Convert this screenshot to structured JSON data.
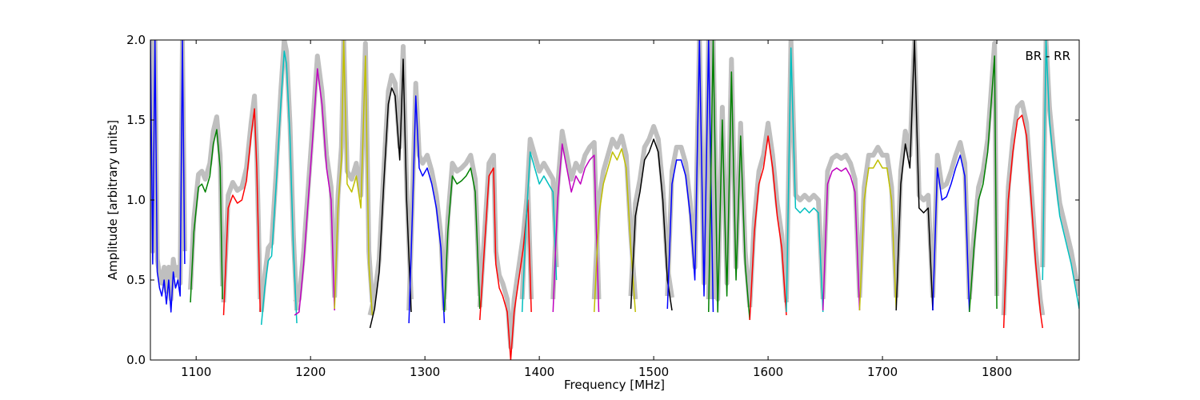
{
  "chart_data": {
    "type": "line",
    "title": "",
    "annotation": "BR - RR",
    "xlabel": "Frequency [MHz]",
    "ylabel": "Amplitude [arbitrary units]",
    "xlim": [
      1060,
      1872
    ],
    "ylim": [
      0.0,
      2.0
    ],
    "xticks": [
      1100,
      1200,
      1300,
      1400,
      1500,
      1600,
      1700,
      1800
    ],
    "yticks": [
      0.0,
      0.5,
      1.0,
      1.5,
      2.0
    ],
    "xtick_labels": [
      "1100",
      "1200",
      "1300",
      "1400",
      "1500",
      "1600",
      "1700",
      "1800"
    ],
    "ytick_labels": [
      "0.0",
      "0.5",
      "1.0",
      "1.5",
      "2.0"
    ],
    "grid": false,
    "legend": "none",
    "background_color": "#bfbfbf",
    "series": [
      {
        "color": "#0000ff",
        "x": [
          1060,
          1062,
          1064,
          1066,
          1068,
          1070,
          1072,
          1074,
          1076,
          1078,
          1080,
          1082,
          1084,
          1086,
          1088,
          1090
        ],
        "y": [
          2.0,
          0.6,
          2.0,
          0.55,
          0.45,
          0.4,
          0.5,
          0.35,
          0.5,
          0.3,
          0.55,
          0.45,
          0.5,
          0.4,
          2.0,
          0.6
        ]
      },
      {
        "color": "#008000",
        "x": [
          1095,
          1098,
          1102,
          1105,
          1108,
          1112,
          1115,
          1118,
          1121,
          1123
        ],
        "y": [
          0.36,
          0.8,
          1.08,
          1.1,
          1.05,
          1.15,
          1.35,
          1.44,
          1.2,
          0.38
        ]
      },
      {
        "color": "#ff0000",
        "x": [
          1124,
          1128,
          1132,
          1136,
          1140,
          1144,
          1148,
          1151,
          1153,
          1156
        ],
        "y": [
          0.28,
          0.95,
          1.03,
          0.98,
          1.0,
          1.12,
          1.4,
          1.57,
          1.2,
          0.3
        ]
      },
      {
        "color": "#00bfbf",
        "x": [
          1157,
          1160,
          1163,
          1166,
          1170,
          1174,
          1177,
          1179,
          1182,
          1185,
          1188
        ],
        "y": [
          0.22,
          0.45,
          0.62,
          0.65,
          1.1,
          1.6,
          1.93,
          1.85,
          1.4,
          0.7,
          0.23
        ]
      },
      {
        "color": "#bf00bf",
        "x": [
          1186,
          1190,
          1194,
          1198,
          1202,
          1206,
          1210,
          1214,
          1218,
          1221
        ],
        "y": [
          0.28,
          0.3,
          0.6,
          1.0,
          1.4,
          1.82,
          1.6,
          1.2,
          1.0,
          0.31
        ]
      },
      {
        "color": "#bfbf00",
        "x": [
          1221,
          1224,
          1227,
          1229,
          1232,
          1236,
          1240,
          1244,
          1248,
          1251,
          1254
        ],
        "y": [
          0.32,
          0.95,
          1.25,
          2.0,
          1.1,
          1.05,
          1.15,
          0.95,
          1.9,
          0.6,
          0.28
        ]
      },
      {
        "color": "#000000",
        "x": [
          1252,
          1256,
          1260,
          1264,
          1268,
          1271,
          1274,
          1278,
          1281,
          1284,
          1288
        ],
        "y": [
          0.2,
          0.32,
          0.55,
          1.1,
          1.6,
          1.7,
          1.65,
          1.25,
          1.88,
          1.0,
          0.3
        ]
      },
      {
        "color": "#0000ff",
        "x": [
          1286,
          1289,
          1292,
          1295,
          1298,
          1302,
          1306,
          1310,
          1314,
          1317
        ],
        "y": [
          0.23,
          0.9,
          1.65,
          1.2,
          1.15,
          1.2,
          1.1,
          0.95,
          0.7,
          0.23
        ]
      },
      {
        "color": "#008000",
        "x": [
          1317,
          1320,
          1324,
          1328,
          1332,
          1336,
          1340,
          1344,
          1348
        ],
        "y": [
          0.3,
          0.8,
          1.15,
          1.1,
          1.12,
          1.15,
          1.2,
          1.05,
          0.32
        ]
      },
      {
        "color": "#ff0000",
        "x": [
          1348,
          1352,
          1356,
          1360,
          1362,
          1365,
          1368,
          1372,
          1375,
          1378,
          1382,
          1386,
          1390,
          1393
        ],
        "y": [
          0.25,
          0.7,
          1.15,
          1.2,
          0.6,
          0.45,
          0.4,
          0.3,
          0.0,
          0.3,
          0.5,
          0.7,
          1.0,
          0.3
        ]
      },
      {
        "color": "#00bfbf",
        "x": [
          1385,
          1388,
          1392,
          1396,
          1400,
          1404,
          1408,
          1412,
          1415
        ],
        "y": [
          0.3,
          0.8,
          1.3,
          1.2,
          1.1,
          1.15,
          1.1,
          1.05,
          0.5
        ]
      },
      {
        "color": "#bf00bf",
        "x": [
          1412,
          1416,
          1420,
          1424,
          1428,
          1432,
          1436,
          1440,
          1444,
          1448,
          1452
        ],
        "y": [
          0.3,
          1.0,
          1.35,
          1.2,
          1.05,
          1.15,
          1.1,
          1.2,
          1.25,
          1.28,
          0.3
        ]
      },
      {
        "color": "#bfbf00",
        "x": [
          1448,
          1452,
          1456,
          1460,
          1464,
          1468,
          1472,
          1476,
          1480,
          1484
        ],
        "y": [
          0.3,
          0.9,
          1.1,
          1.2,
          1.3,
          1.25,
          1.32,
          1.2,
          0.7,
          0.3
        ]
      },
      {
        "color": "#000000",
        "x": [
          1480,
          1484,
          1488,
          1492,
          1496,
          1500,
          1504,
          1508,
          1512,
          1516
        ],
        "y": [
          0.32,
          0.9,
          1.05,
          1.25,
          1.3,
          1.38,
          1.3,
          1.0,
          0.5,
          0.31
        ]
      },
      {
        "color": "#0000ff",
        "x": [
          1512,
          1516,
          1520,
          1524,
          1528,
          1532,
          1536,
          1540,
          1544,
          1548,
          1552
        ],
        "y": [
          0.32,
          1.1,
          1.25,
          1.25,
          1.15,
          0.9,
          0.5,
          2.0,
          0.4,
          2.0,
          0.3
        ]
      },
      {
        "color": "#008000",
        "x": [
          1548,
          1552,
          1556,
          1560,
          1564,
          1568,
          1572,
          1576,
          1580,
          1584
        ],
        "y": [
          0.3,
          2.0,
          0.3,
          1.5,
          0.4,
          1.8,
          0.5,
          1.4,
          0.6,
          0.25
        ]
      },
      {
        "color": "#ff0000",
        "x": [
          1584,
          1588,
          1592,
          1596,
          1600,
          1604,
          1608,
          1612,
          1616
        ],
        "y": [
          0.25,
          0.8,
          1.1,
          1.2,
          1.4,
          1.2,
          0.9,
          0.7,
          0.28
        ]
      },
      {
        "color": "#00bfbf",
        "x": [
          1616,
          1620,
          1624,
          1628,
          1632,
          1636,
          1640,
          1644,
          1648
        ],
        "y": [
          0.3,
          1.95,
          0.95,
          0.92,
          0.95,
          0.92,
          0.95,
          0.92,
          0.3
        ]
      },
      {
        "color": "#bf00bf",
        "x": [
          1648,
          1652,
          1656,
          1660,
          1664,
          1668,
          1672,
          1676,
          1680
        ],
        "y": [
          0.31,
          1.1,
          1.18,
          1.2,
          1.18,
          1.2,
          1.15,
          1.05,
          0.31
        ]
      },
      {
        "color": "#bfbf00",
        "x": [
          1680,
          1684,
          1688,
          1692,
          1696,
          1700,
          1704,
          1708,
          1712
        ],
        "y": [
          0.31,
          1.0,
          1.2,
          1.2,
          1.25,
          1.2,
          1.2,
          1.0,
          0.32
        ]
      },
      {
        "color": "#000000",
        "x": [
          1712,
          1716,
          1720,
          1724,
          1728,
          1732,
          1736,
          1740,
          1744
        ],
        "y": [
          0.31,
          1.1,
          1.35,
          1.2,
          2.0,
          0.95,
          0.92,
          0.95,
          0.31
        ]
      },
      {
        "color": "#0000ff",
        "x": [
          1744,
          1748,
          1752,
          1756,
          1760,
          1764,
          1768,
          1772,
          1776
        ],
        "y": [
          0.31,
          1.2,
          1.0,
          1.02,
          1.1,
          1.2,
          1.28,
          1.15,
          0.3
        ]
      },
      {
        "color": "#008000",
        "x": [
          1776,
          1780,
          1784,
          1788,
          1792,
          1795,
          1798,
          1800
        ],
        "y": [
          0.3,
          0.7,
          1.0,
          1.1,
          1.3,
          1.6,
          1.9,
          0.32
        ]
      },
      {
        "color": "#ff0000",
        "x": [
          1806,
          1810,
          1814,
          1818,
          1822,
          1826,
          1830,
          1834,
          1838,
          1840
        ],
        "y": [
          0.2,
          1.0,
          1.3,
          1.5,
          1.53,
          1.4,
          1.0,
          0.6,
          0.3,
          0.2
        ]
      },
      {
        "color": "#00bfbf",
        "x": [
          1840,
          1843,
          1846,
          1850,
          1855,
          1860,
          1865,
          1870,
          1872
        ],
        "y": [
          0.5,
          2.0,
          1.5,
          1.2,
          0.9,
          0.75,
          0.6,
          0.4,
          0.32
        ]
      }
    ]
  }
}
